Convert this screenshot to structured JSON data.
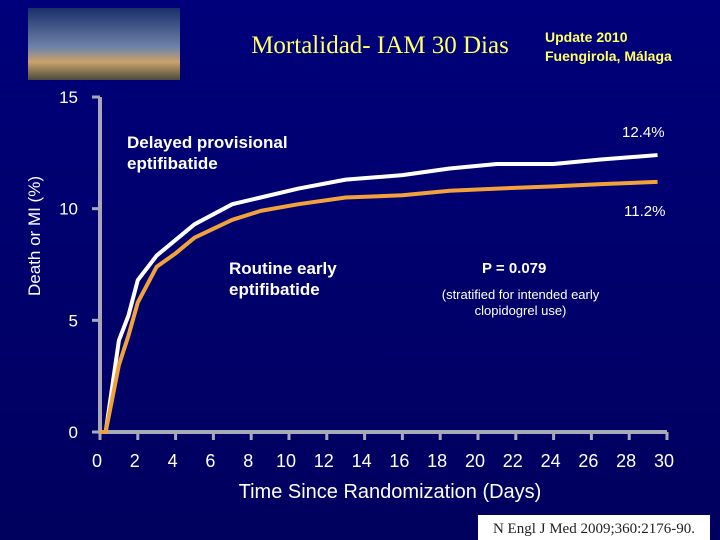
{
  "header": {
    "title": "Mortalidad- IAM 30 Dias",
    "update": [
      "Update 2010",
      "Fuengirola, Málaga"
    ]
  },
  "chart_data": {
    "type": "line",
    "x_label": "Time Since Randomization (Days)",
    "y_label": "Death or MI (%)",
    "xlim": [
      0,
      30
    ],
    "ylim": [
      0,
      15
    ],
    "xticks": [
      0,
      2,
      4,
      6,
      8,
      10,
      12,
      14,
      16,
      18,
      20,
      22,
      24,
      26,
      28,
      30
    ],
    "yticks": [
      0,
      5,
      10,
      15
    ],
    "x": [
      0,
      0.3,
      1,
      1.5,
      2,
      3,
      4,
      5,
      7,
      8.5,
      10.5,
      13,
      16,
      18.5,
      21,
      24,
      26.5,
      29.5
    ],
    "series": [
      {
        "name": "Delayed provisional eptifibatide",
        "color": "#ffffff",
        "values": [
          0,
          0,
          4.1,
          5.2,
          6.8,
          7.9,
          8.6,
          9.3,
          10.2,
          10.5,
          10.9,
          11.3,
          11.5,
          11.8,
          12.0,
          12.0,
          12.2,
          12.4
        ],
        "end_label": "12.4%"
      },
      {
        "name": "Routine early eptifibatide",
        "color": "#f2a23c",
        "values": [
          0,
          0,
          3.0,
          4.3,
          5.8,
          7.4,
          8.0,
          8.7,
          9.5,
          9.9,
          10.2,
          10.5,
          10.6,
          10.8,
          10.9,
          11.0,
          11.1,
          11.2
        ],
        "end_label": "11.2%"
      }
    ],
    "annotations": [
      "P = 0.079",
      "(stratified for intended early clopidogrel use)"
    ]
  },
  "citation": "N Engl J Med 2009;360:2176-90."
}
